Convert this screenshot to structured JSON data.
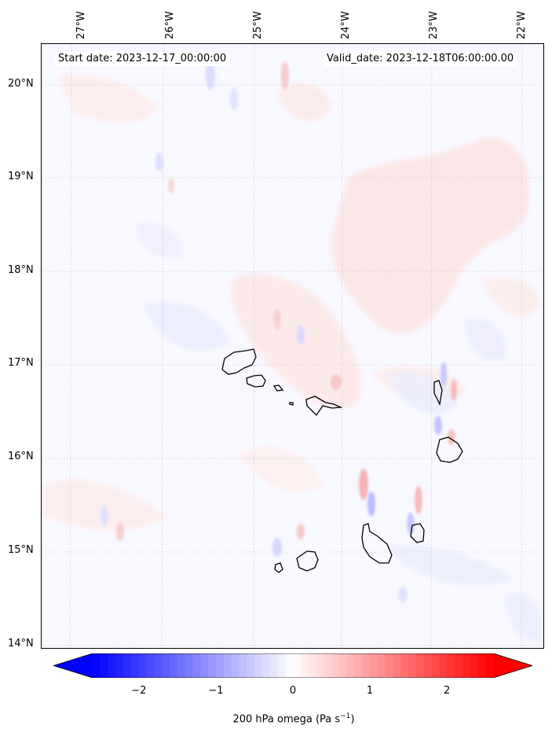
{
  "header": {
    "start_date": "Start date: 2023-12-17_00:00:00",
    "valid_date": "Valid_date: 2023-12-18T06:00:00.00"
  },
  "map": {
    "projection": "lat-lon",
    "lon_labels": [
      "27°W",
      "26°W",
      "25°W",
      "24°W",
      "23°W",
      "22°W"
    ],
    "lat_labels": [
      "20°N",
      "19°N",
      "18°N",
      "17°N",
      "16°N",
      "15°N",
      "14°N"
    ],
    "gridlines": "on, dashed light grey",
    "field": "200 hPa omega",
    "islands": [
      "Santo Antão",
      "São Vicente",
      "Santa Luzia",
      "São Nicolau",
      "Sal",
      "Boa Vista",
      "Maio",
      "Santiago",
      "Fogo",
      "Brava"
    ]
  },
  "colorbar": {
    "ticks": [
      "−2",
      "−1",
      "0",
      "1",
      "2"
    ],
    "label": "200 hPa omega (Pa s",
    "label_sup": "−1",
    "label_end": ")",
    "colormap": "bwr",
    "range": [
      -2.6,
      2.6
    ],
    "extend": "both",
    "low_color": "#0000ff",
    "high_color": "#ff0000"
  }
}
